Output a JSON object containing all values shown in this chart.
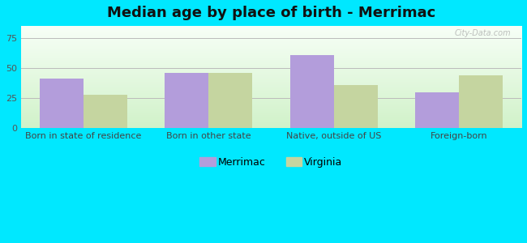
{
  "title": "Median age by place of birth - Merrimac",
  "categories": [
    "Born in state of residence",
    "Born in other state",
    "Native, outside of US",
    "Foreign-born"
  ],
  "merrimac_values": [
    41,
    46,
    61,
    30
  ],
  "virginia_values": [
    28,
    46,
    36,
    44
  ],
  "merrimac_color": "#b39ddb",
  "virginia_color": "#c5d5a0",
  "background_outer": "#00e8ff",
  "ylim": [
    0,
    85
  ],
  "yticks": [
    0,
    25,
    50,
    75
  ],
  "bar_width": 0.35,
  "legend_labels": [
    "Merrimac",
    "Virginia"
  ],
  "watermark": "City-Data.com",
  "title_fontsize": 13,
  "tick_fontsize": 8,
  "legend_fontsize": 9,
  "grad_top": "#f0f8f0",
  "grad_bottom": "#c8e8c0"
}
